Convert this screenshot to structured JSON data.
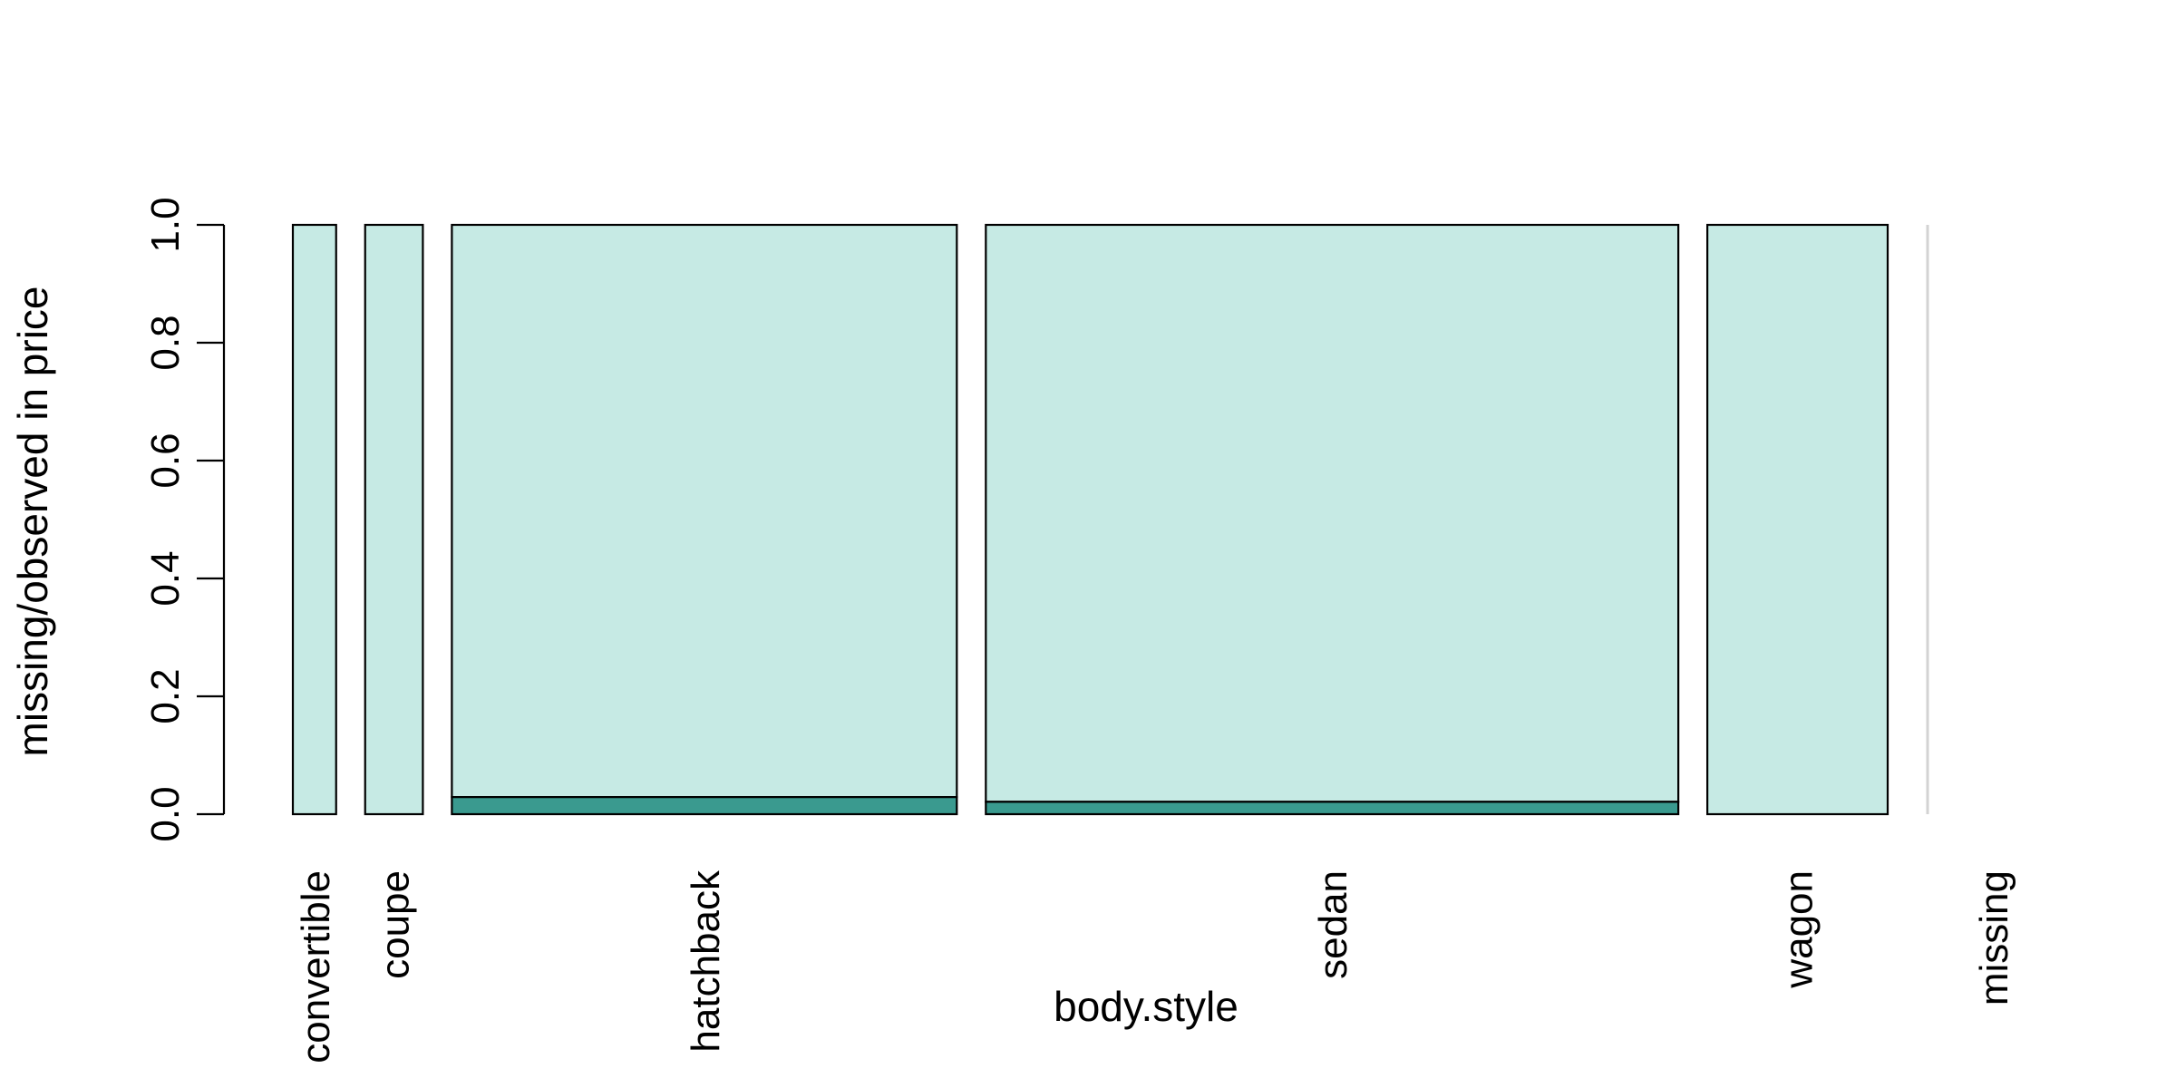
{
  "chart_data": {
    "type": "bar",
    "variant": "spineplot",
    "xlabel": "body.style",
    "ylabel": "missing/observed in price",
    "ylim": [
      0,
      1
    ],
    "yticks": [
      "0.0",
      "0.2",
      "0.4",
      "0.6",
      "0.8",
      "1.0"
    ],
    "grid": false,
    "categories": [
      "convertible",
      "coupe",
      "hatchback",
      "sedan",
      "wagon",
      "missing"
    ],
    "relative_width": [
      6,
      8,
      70,
      96,
      25,
      0
    ],
    "series": [
      {
        "values": [
          0,
          0,
          0.029,
          0.021,
          0,
          0
        ]
      },
      {
        "values": [
          1,
          1,
          0.971,
          0.979,
          1,
          0
        ]
      }
    ],
    "colors": {
      "missing": "#3a9a8f",
      "observed": "#c6eae4",
      "empty_category": "#d3d3d3"
    }
  }
}
